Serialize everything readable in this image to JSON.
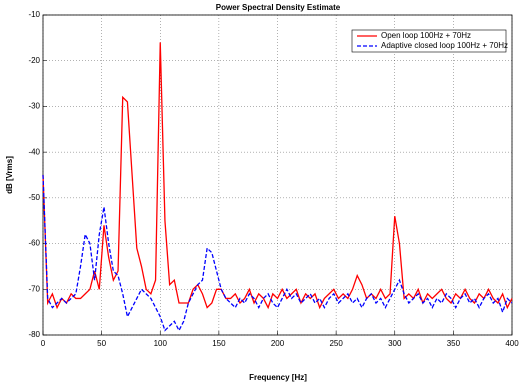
{
  "chart_data": {
    "type": "line",
    "title": "Power Spectral Density Estimate",
    "x_label": "Frequency [Hz]",
    "y_label": "dB [Vrms]",
    "x": [
      0,
      4,
      8,
      12,
      16,
      20,
      24,
      28,
      32,
      36,
      40,
      44,
      48,
      52,
      56,
      60,
      64,
      68,
      72,
      76,
      80,
      84,
      88,
      92,
      96,
      100,
      104,
      108,
      112,
      116,
      120,
      124,
      128,
      132,
      136,
      140,
      144,
      148,
      152,
      156,
      160,
      164,
      168,
      172,
      176,
      180,
      184,
      188,
      192,
      196,
      200,
      204,
      208,
      212,
      216,
      220,
      224,
      228,
      232,
      236,
      240,
      244,
      248,
      252,
      256,
      260,
      264,
      268,
      272,
      276,
      280,
      284,
      288,
      292,
      296,
      300,
      304,
      308,
      312,
      316,
      320,
      324,
      328,
      332,
      336,
      340,
      344,
      348,
      352,
      356,
      360,
      364,
      368,
      372,
      376,
      380,
      384,
      388,
      392,
      396,
      400
    ],
    "series": [
      {
        "name": "Open loop 100Hz + 70Hz",
        "color": "#ff0000",
        "dash": "solid",
        "values": [
          -45,
          -73,
          -71,
          -74,
          -72,
          -73,
          -71,
          -72,
          -72,
          -71,
          -70,
          -66,
          -70,
          -56,
          -63,
          -68,
          -66,
          -28,
          -29,
          -45,
          -61,
          -65,
          -70,
          -71,
          -68,
          -16,
          -55,
          -69,
          -68,
          -73,
          -73,
          -73,
          -70,
          -69,
          -71,
          -74,
          -73,
          -70,
          -70,
          -72,
          -72,
          -71,
          -73,
          -72,
          -70,
          -73,
          -71,
          -72,
          -74,
          -71,
          -72,
          -70,
          -72,
          -71,
          -70,
          -73,
          -71,
          -72,
          -71,
          -74,
          -72,
          -71,
          -70,
          -72,
          -71,
          -72,
          -70,
          -67,
          -69,
          -72,
          -71,
          -72,
          -70,
          -72,
          -71,
          -54,
          -60,
          -72,
          -71,
          -72,
          -70,
          -73,
          -71,
          -72,
          -71,
          -70,
          -72,
          -73,
          -71,
          -72,
          -70,
          -72,
          -73,
          -71,
          -72,
          -70,
          -72,
          -73,
          -71,
          -74,
          -72
        ]
      },
      {
        "name": "Adaptive closed loop 100Hz + 70Hz",
        "color": "#0000ff",
        "dash": "dashed",
        "values": [
          -45,
          -72,
          -74,
          -73,
          -72,
          -73,
          -72,
          -71,
          -65,
          -58,
          -60,
          -68,
          -58,
          -52,
          -60,
          -66,
          -67,
          -71,
          -76,
          -74,
          -72,
          -70,
          -71,
          -72,
          -74,
          -76,
          -79,
          -78,
          -77,
          -79,
          -77,
          -73,
          -71,
          -69,
          -68,
          -61,
          -62,
          -66,
          -70,
          -72,
          -73,
          -74,
          -72,
          -73,
          -71,
          -72,
          -74,
          -72,
          -71,
          -73,
          -74,
          -72,
          -70,
          -72,
          -71,
          -73,
          -72,
          -71,
          -73,
          -72,
          -74,
          -72,
          -71,
          -73,
          -72,
          -71,
          -73,
          -72,
          -74,
          -72,
          -71,
          -73,
          -72,
          -74,
          -72,
          -70,
          -68,
          -71,
          -73,
          -72,
          -71,
          -73,
          -72,
          -74,
          -72,
          -73,
          -71,
          -72,
          -74,
          -72,
          -71,
          -73,
          -72,
          -74,
          -72,
          -71,
          -73,
          -72,
          -75,
          -72,
          -73
        ]
      }
    ],
    "xlim": [
      0,
      400
    ],
    "xticks": [
      0,
      50,
      100,
      150,
      200,
      250,
      300,
      350,
      400
    ],
    "ylim": [
      -80,
      -10
    ],
    "yticks": [
      -80,
      -70,
      -60,
      -50,
      -40,
      -30,
      -20,
      -10
    ],
    "grid": true,
    "legend": "upper right"
  }
}
